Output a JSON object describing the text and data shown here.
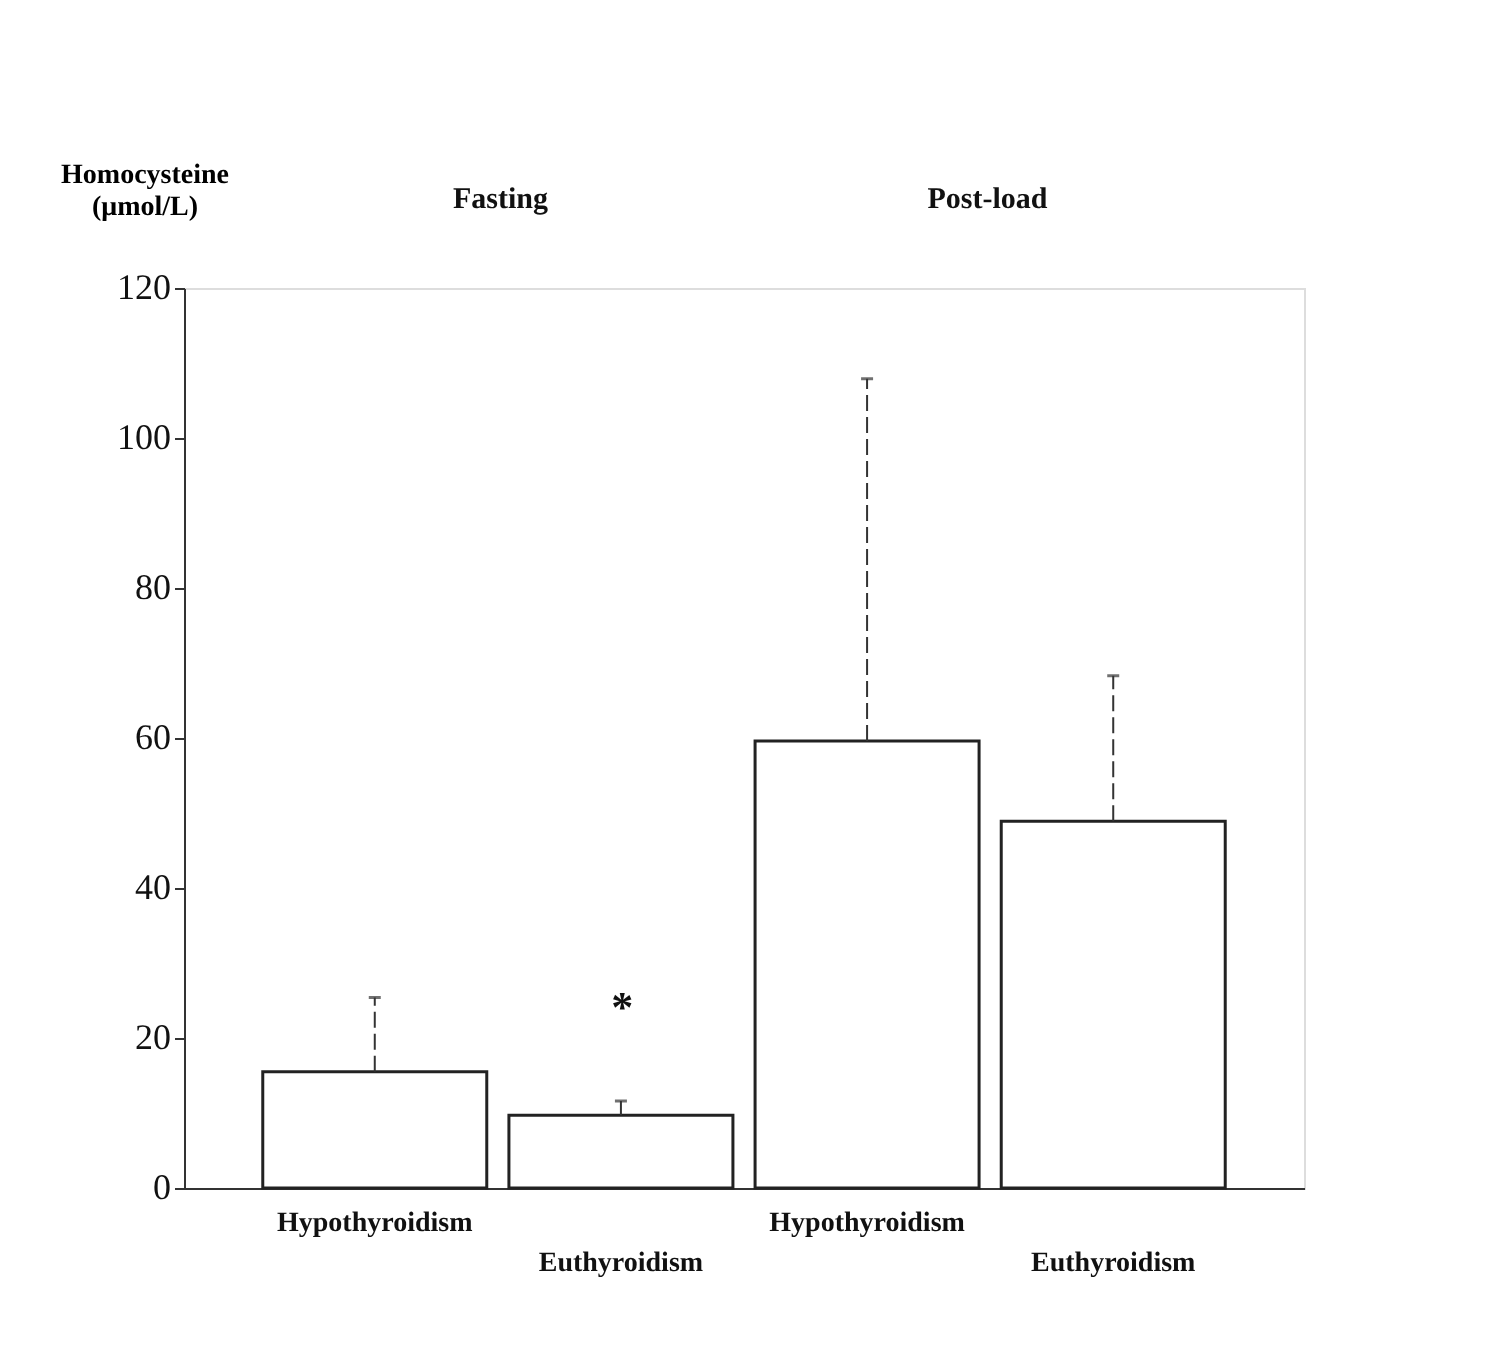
{
  "chart_data": {
    "type": "bar",
    "ylabel": "Homocysteine (μmol/L)",
    "categories": [
      "Hypothyroidism",
      "Euthyroidism",
      "Hypothyroidism",
      "Euthyroidism"
    ],
    "values": [
      15.5,
      9.7,
      59.6,
      48.9
    ],
    "errors": [
      [
        15.5,
        25.4
      ],
      [
        9.7,
        11.6
      ],
      [
        59.6,
        107.9
      ],
      [
        48.9,
        68.3
      ]
    ],
    "color": "#ffffff",
    "ylim": [
      0,
      120
    ],
    "yticks": [
      0,
      20,
      40,
      60,
      80,
      100,
      120
    ],
    "grid": false,
    "annotations": [
      "Fasting",
      "Post-load",
      "*"
    ]
  }
}
